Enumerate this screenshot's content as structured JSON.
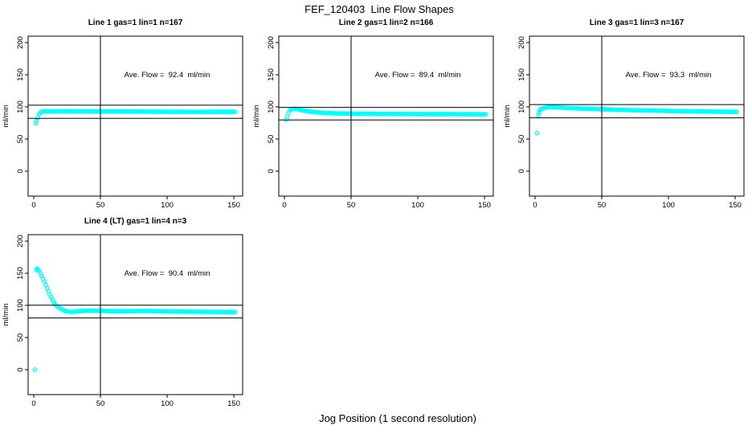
{
  "page": {
    "title": "FEF_120403  Line Flow Shapes",
    "xlabel": "Jog Position (1 second resolution)",
    "background": "#ffffff",
    "line_color": "#000000"
  },
  "chart_data": [
    {
      "type": "scatter",
      "title": "Line 1 gas=1 lin=1 n=167",
      "ylabel": "ml/min",
      "annotation": "Ave. Flow =  92.4  ml/min",
      "annotation_pos": {
        "x": 100,
        "y": 150
      },
      "ave_flow": 92.4,
      "n": 167,
      "marker": "open-circle",
      "marker_color": "#00ffff",
      "xlim": [
        -4.2,
        156.6
      ],
      "ylim": [
        -38.8,
        210
      ],
      "x_ticks": [
        0,
        50,
        100,
        150
      ],
      "y_ticks": [
        0,
        50,
        100,
        150,
        200
      ],
      "vline_x": 50,
      "hlines": [
        102.6,
        82.2
      ],
      "grid": {
        "row": 0,
        "col": 0
      },
      "point_spacing": 1,
      "points": [
        [
          1.5,
          74
        ],
        [
          3,
          83
        ],
        [
          4,
          88.5
        ],
        [
          5,
          91
        ],
        [
          6,
          92.5
        ],
        [
          8,
          93
        ],
        [
          20,
          93.2
        ],
        [
          40,
          93
        ],
        [
          60,
          92.8
        ],
        [
          80,
          92.6
        ],
        [
          100,
          92.4
        ],
        [
          120,
          92.2
        ],
        [
          135,
          92.3
        ],
        [
          151,
          92.3
        ]
      ]
    },
    {
      "type": "scatter",
      "title": "Line 2 gas=1 lin=2 n=166",
      "ylabel": "ml/min",
      "annotation": "Ave. Flow =  89.4  ml/min",
      "annotation_pos": {
        "x": 100,
        "y": 150
      },
      "ave_flow": 89.4,
      "n": 166,
      "marker": "open-circle",
      "marker_color": "#00ffff",
      "xlim": [
        -4.2,
        156.6
      ],
      "ylim": [
        -38.8,
        210
      ],
      "x_ticks": [
        0,
        50,
        100,
        150
      ],
      "y_ticks": [
        0,
        50,
        100,
        150,
        200
      ],
      "vline_x": 50,
      "hlines": [
        99.2,
        79.6
      ],
      "grid": {
        "row": 0,
        "col": 1
      },
      "point_spacing": 1,
      "points": [
        [
          1.5,
          80
        ],
        [
          3,
          90
        ],
        [
          4,
          94.5
        ],
        [
          5,
          96
        ],
        [
          6,
          96.8
        ],
        [
          8,
          97
        ],
        [
          10,
          96.3
        ],
        [
          12,
          95.3
        ],
        [
          15,
          94
        ],
        [
          18,
          93
        ],
        [
          22,
          92
        ],
        [
          27,
          91
        ],
        [
          33,
          90.3
        ],
        [
          40,
          89.8
        ],
        [
          55,
          89.3
        ],
        [
          75,
          89
        ],
        [
          100,
          88.8
        ],
        [
          125,
          88.7
        ],
        [
          151,
          88.5
        ]
      ]
    },
    {
      "type": "scatter",
      "title": "Line 3 gas=1 lin=3 n=167",
      "ylabel": "ml/min",
      "annotation": "Ave. Flow =  93.3  ml/min",
      "annotation_pos": {
        "x": 100,
        "y": 150
      },
      "ave_flow": 93.3,
      "n": 167,
      "marker": "open-circle",
      "marker_color": "#00ffff",
      "xlim": [
        -4.2,
        156.6
      ],
      "ylim": [
        -38.8,
        210
      ],
      "x_ticks": [
        0,
        50,
        100,
        150
      ],
      "y_ticks": [
        0,
        50,
        100,
        150,
        200
      ],
      "vline_x": 50,
      "hlines": [
        103.6,
        83.0
      ],
      "grid": {
        "row": 0,
        "col": 2
      },
      "point_spacing": 1,
      "points": [
        [
          1.5,
          59
        ],
        [
          2.5,
          87
        ],
        [
          3,
          91
        ],
        [
          3.5,
          94.5
        ],
        [
          4,
          96
        ],
        [
          5,
          97
        ],
        [
          7,
          98.5
        ],
        [
          10,
          99.3
        ],
        [
          14,
          99.5
        ],
        [
          18,
          99.2
        ],
        [
          25,
          98.3
        ],
        [
          35,
          97.3
        ],
        [
          45,
          96.5
        ],
        [
          55,
          96
        ],
        [
          70,
          95
        ],
        [
          85,
          94.3
        ],
        [
          100,
          93.6
        ],
        [
          115,
          93.2
        ],
        [
          130,
          92.7
        ],
        [
          151,
          92.2
        ]
      ]
    },
    {
      "type": "scatter",
      "title": "Line 4 (LT) gas=1 lin=4 n=3",
      "ylabel": "ml/min",
      "annotation": "Ave. Flow =  90.4  ml/min",
      "annotation_pos": {
        "x": 100,
        "y": 150
      },
      "ave_flow": 90.4,
      "n": 3,
      "marker": "open-circle",
      "marker_color": "#00ffff",
      "xlim": [
        -4.2,
        156.6
      ],
      "ylim": [
        -38.8,
        210
      ],
      "x_ticks": [
        0,
        50,
        100,
        150
      ],
      "y_ticks": [
        0,
        50,
        100,
        150,
        200
      ],
      "vline_x": 50,
      "hlines": [
        100.3,
        80.5
      ],
      "grid": {
        "row": 1,
        "col": 0
      },
      "point_spacing": 1,
      "points": [
        [
          1,
          0
        ],
        [
          2,
          155
        ],
        [
          2.5,
          157
        ],
        [
          3,
          156
        ],
        [
          4,
          154
        ],
        [
          5,
          150
        ],
        [
          6,
          146
        ],
        [
          7,
          142
        ],
        [
          8,
          137
        ],
        [
          9,
          132
        ],
        [
          10,
          127
        ],
        [
          11,
          122
        ],
        [
          12,
          117
        ],
        [
          13,
          113
        ],
        [
          14,
          109
        ],
        [
          15,
          105
        ],
        [
          16,
          102
        ],
        [
          17,
          100
        ],
        [
          18,
          98
        ],
        [
          19,
          96.5
        ],
        [
          20,
          95
        ],
        [
          21,
          94
        ],
        [
          22,
          93
        ],
        [
          23,
          92
        ],
        [
          24,
          91.3
        ],
        [
          26,
          90.3
        ],
        [
          28,
          89.8
        ],
        [
          30,
          90
        ],
        [
          34,
          91
        ],
        [
          38,
          91.5
        ],
        [
          44,
          91.8
        ],
        [
          50,
          91.5
        ],
        [
          58,
          91
        ],
        [
          70,
          91
        ],
        [
          85,
          91.3
        ],
        [
          95,
          90.8
        ],
        [
          110,
          90.3
        ],
        [
          125,
          90
        ],
        [
          140,
          89.8
        ],
        [
          151,
          89.7
        ]
      ]
    }
  ]
}
